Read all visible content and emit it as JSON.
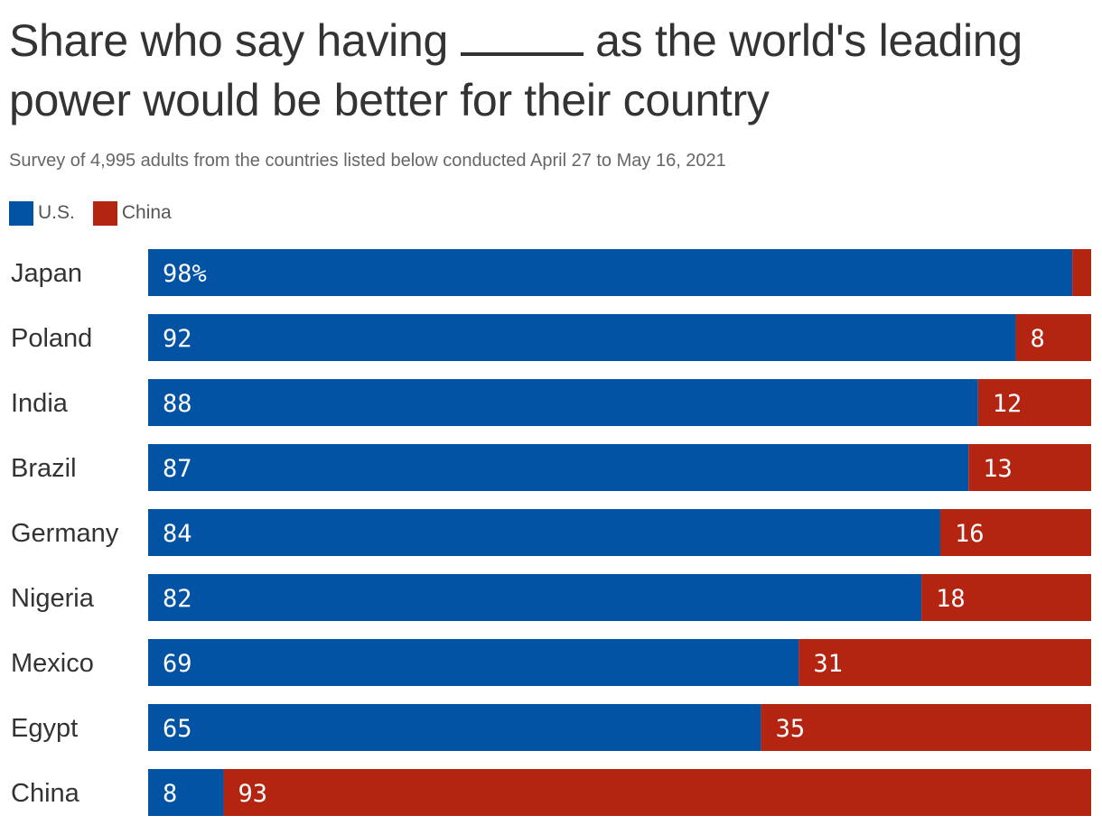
{
  "title": "Share who say having _____ as the world's leading power would be better for their country",
  "subtitle": "Survey of 4,995 adults from the countries listed below conducted April 27 to May 16, 2021",
  "chart_data": {
    "type": "bar",
    "orientation": "horizontal",
    "stacked": true,
    "title": "Share who say having _____ as the world's leading power would be better for their country",
    "subtitle": "Survey of 4,995 adults from the countries listed below conducted April 27 to May 16, 2021",
    "categories": [
      "Japan",
      "Poland",
      "India",
      "Brazil",
      "Germany",
      "Nigeria",
      "Mexico",
      "Egypt",
      "China"
    ],
    "series": [
      {
        "name": "U.S.",
        "color": "#0353a4",
        "values": [
          98,
          92,
          88,
          87,
          84,
          82,
          69,
          65,
          8
        ],
        "labels": [
          "98%",
          "92",
          "88",
          "87",
          "84",
          "82",
          "69",
          "65",
          "8"
        ]
      },
      {
        "name": "China",
        "color": "#b32511",
        "values": [
          2,
          8,
          12,
          13,
          16,
          18,
          31,
          35,
          93
        ],
        "labels": [
          "",
          "8",
          "12",
          "13",
          "16",
          "18",
          "31",
          "35",
          "93"
        ]
      }
    ],
    "xlim": [
      0,
      100
    ],
    "grid": false,
    "legend": "top-left"
  }
}
